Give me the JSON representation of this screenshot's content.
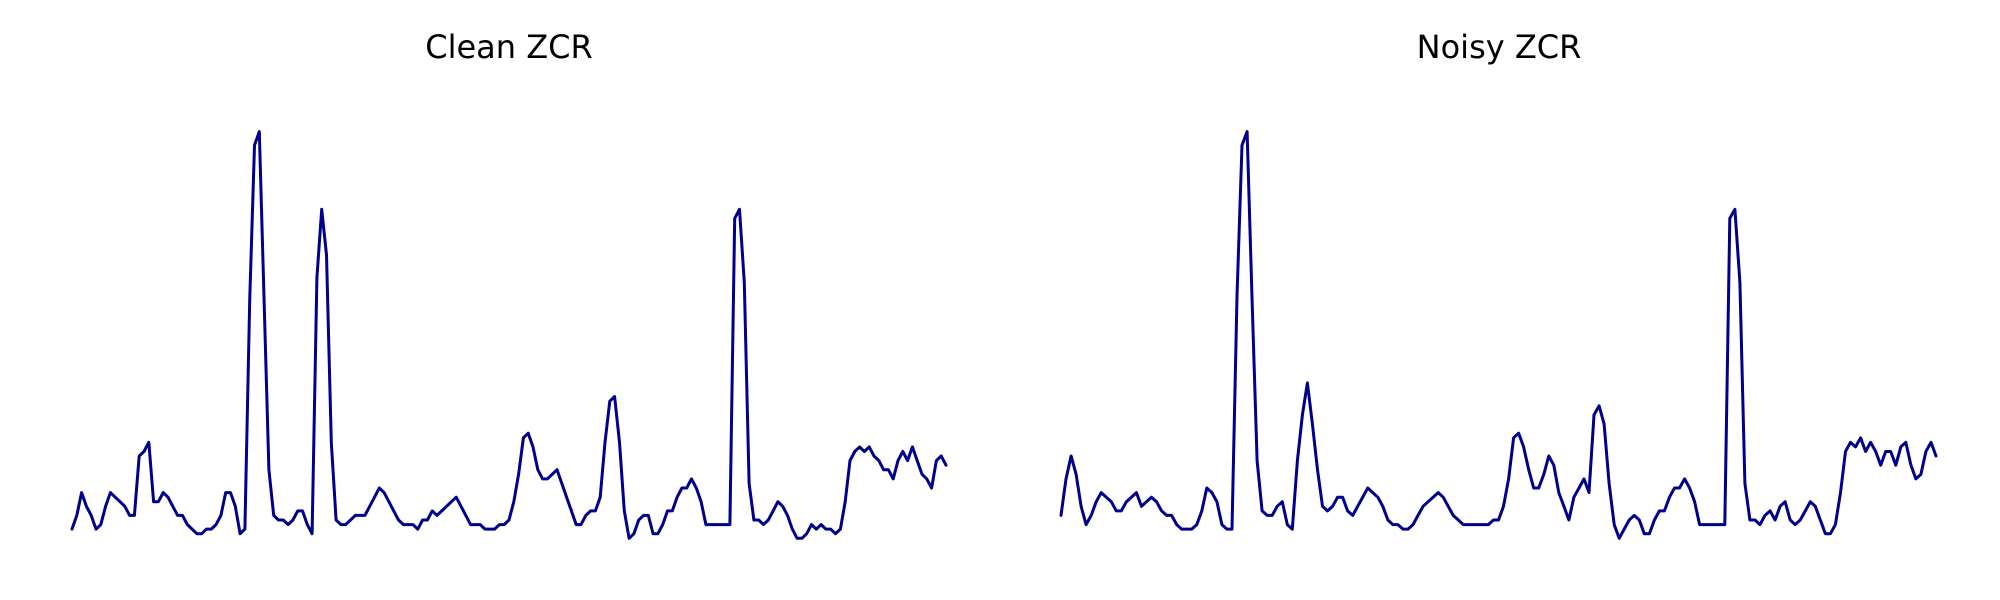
{
  "line_color": "#00008b",
  "chart_data": [
    {
      "type": "line",
      "title": "Clean ZCR",
      "xlabel": "",
      "ylabel": "",
      "axes_visible": false,
      "grid": false,
      "ylim": [
        0,
        100
      ],
      "y": [
        5,
        8,
        13,
        10,
        8,
        5,
        6,
        10,
        13,
        12,
        11,
        10,
        8,
        8,
        21,
        22,
        24,
        11,
        11,
        13,
        12,
        10,
        8,
        8,
        6,
        5,
        4,
        4,
        5,
        5,
        6,
        8,
        13,
        13,
        10,
        4,
        5,
        55,
        89,
        92,
        55,
        18,
        8,
        7,
        7,
        6,
        7,
        9,
        9,
        6,
        4,
        60,
        75,
        65,
        24,
        7,
        6,
        6,
        7,
        8,
        8,
        8,
        10,
        12,
        14,
        13,
        11,
        9,
        7,
        6,
        6,
        6,
        5,
        7,
        7,
        9,
        8,
        9,
        10,
        11,
        12,
        10,
        8,
        6,
        6,
        6,
        5,
        5,
        5,
        6,
        6,
        7,
        11,
        17,
        25,
        26,
        23,
        18,
        16,
        16,
        17,
        18,
        15,
        12,
        9,
        6,
        6,
        8,
        9,
        9,
        12,
        24,
        33,
        34,
        24,
        9,
        3,
        4,
        7,
        8,
        8,
        4,
        4,
        6,
        9,
        9,
        12,
        14,
        14,
        16,
        14,
        11,
        6,
        6,
        6,
        6,
        6,
        6,
        73,
        75,
        59,
        15,
        7,
        7,
        6,
        7,
        9,
        11,
        10,
        8,
        5,
        3,
        3,
        4,
        6,
        5,
        6,
        5,
        5,
        4,
        5,
        11,
        20,
        22,
        23,
        22,
        23,
        21,
        20,
        18,
        18,
        16,
        20,
        22,
        20,
        23,
        20,
        17,
        16,
        14,
        20,
        21,
        19
      ]
    },
    {
      "type": "line",
      "title": "Noisy ZCR",
      "xlabel": "",
      "ylabel": "",
      "axes_visible": false,
      "grid": false,
      "ylim": [
        0,
        100
      ],
      "y": [
        8,
        16,
        21,
        17,
        10,
        6,
        8,
        11,
        13,
        12,
        11,
        9,
        9,
        11,
        12,
        13,
        10,
        11,
        12,
        11,
        9,
        8,
        8,
        6,
        5,
        5,
        5,
        6,
        9,
        14,
        13,
        11,
        6,
        5,
        5,
        56,
        89,
        92,
        55,
        20,
        9,
        8,
        8,
        10,
        11,
        6,
        5,
        20,
        30,
        37,
        28,
        18,
        10,
        9,
        10,
        12,
        12,
        9,
        8,
        10,
        12,
        14,
        13,
        12,
        10,
        7,
        6,
        6,
        5,
        5,
        6,
        8,
        10,
        11,
        12,
        13,
        12,
        10,
        8,
        7,
        6,
        6,
        6,
        6,
        6,
        6,
        7,
        7,
        10,
        16,
        25,
        26,
        23,
        18,
        14,
        14,
        17,
        21,
        19,
        13,
        10,
        7,
        12,
        14,
        16,
        13,
        30,
        32,
        28,
        15,
        6,
        3,
        5,
        7,
        8,
        7,
        4,
        4,
        7,
        9,
        9,
        12,
        14,
        14,
        16,
        14,
        11,
        6,
        6,
        6,
        6,
        6,
        6,
        73,
        75,
        59,
        15,
        7,
        7,
        6,
        8,
        9,
        7,
        10,
        11,
        7,
        6,
        7,
        9,
        11,
        10,
        7,
        4,
        4,
        6,
        13,
        22,
        24,
        23,
        25,
        22,
        24,
        22,
        19,
        22,
        22,
        19,
        23,
        24,
        19,
        16,
        17,
        22,
        24,
        21
      ]
    }
  ]
}
